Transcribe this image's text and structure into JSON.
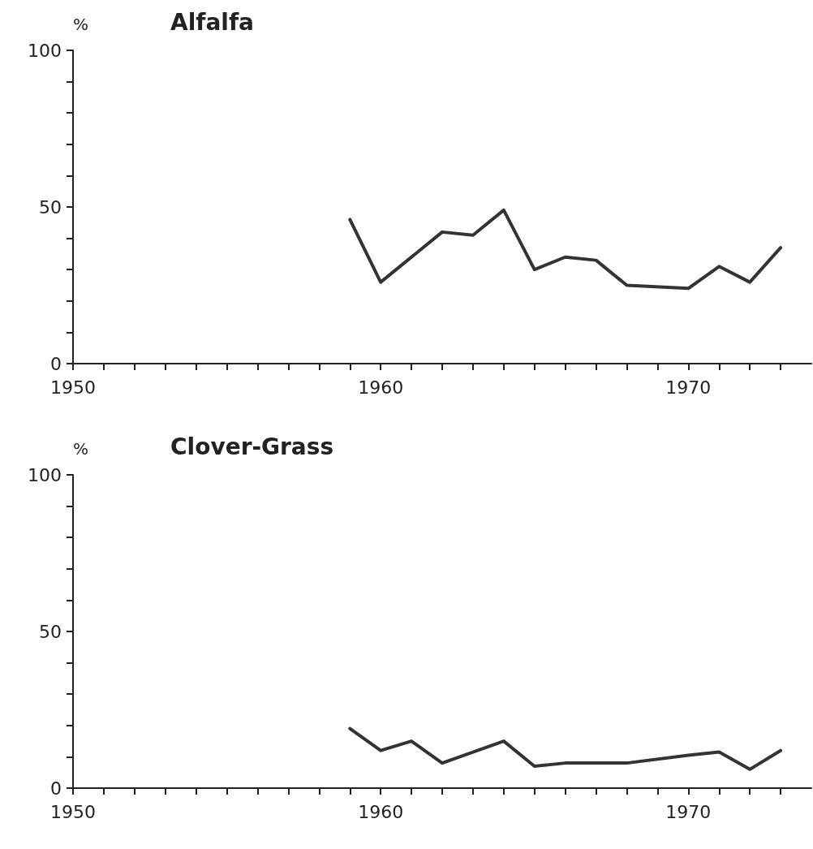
{
  "chart_data": [
    {
      "type": "line",
      "title": "Alfalfa",
      "ylabel": "%",
      "x": [
        1959,
        1960,
        1962,
        1963,
        1964,
        1965,
        1966,
        1967,
        1968,
        1970,
        1971,
        1972,
        1973
      ],
      "series": [
        {
          "color": "#333333",
          "values": [
            46,
            26,
            42,
            41,
            49,
            30,
            34,
            33,
            25,
            24,
            31,
            26,
            37
          ]
        }
      ],
      "xlim": [
        1950,
        1974
      ],
      "ylim": [
        0,
        100
      ],
      "xticks": [
        1950,
        {
          "value": 1951,
          "label": null
        },
        {
          "value": 1952,
          "label": null
        },
        {
          "value": 1953,
          "label": null
        },
        {
          "value": 1954,
          "label": null
        },
        {
          "value": 1955,
          "label": null
        },
        {
          "value": 1956,
          "label": null
        },
        {
          "value": 1957,
          "label": null
        },
        {
          "value": 1958,
          "label": null
        },
        {
          "value": 1959,
          "label": null
        },
        1960,
        {
          "value": 1961,
          "label": null
        },
        {
          "value": 1962,
          "label": null
        },
        {
          "value": 1963,
          "label": null
        },
        {
          "value": 1964,
          "label": null
        },
        {
          "value": 1965,
          "label": null
        },
        {
          "value": 1966,
          "label": null
        },
        {
          "value": 1967,
          "label": null
        },
        {
          "value": 1968,
          "label": null
        },
        {
          "value": 1969,
          "label": null
        },
        1970,
        {
          "value": 1971,
          "label": null
        },
        {
          "value": 1972,
          "label": null
        },
        {
          "value": 1973,
          "label": null
        }
      ],
      "yticks": [
        0,
        {
          "value": 10,
          "label": null
        },
        {
          "value": 20,
          "label": null
        },
        {
          "value": 30,
          "label": null
        },
        {
          "value": 40,
          "label": null
        },
        50,
        {
          "value": 60,
          "label": null
        },
        {
          "value": 70,
          "label": null
        },
        {
          "value": 80,
          "label": null
        },
        {
          "value": 90,
          "label": null
        },
        100
      ],
      "grid": false,
      "marker": "none",
      "line_style": "solid"
    },
    {
      "type": "line",
      "title": "Clover-Grass",
      "ylabel": "%",
      "x": [
        1959,
        1960,
        1961,
        1962,
        1964,
        1965,
        1966,
        1968,
        1970,
        1971,
        1972,
        1973
      ],
      "series": [
        {
          "color": "#333333",
          "values": [
            19,
            12,
            15,
            8,
            15,
            7,
            8,
            8,
            10.5,
            11.5,
            6,
            12
          ]
        }
      ],
      "xlim": [
        1950,
        1974
      ],
      "ylim": [
        0,
        100
      ],
      "xticks": [
        1950,
        {
          "value": 1951,
          "label": null
        },
        {
          "value": 1952,
          "label": null
        },
        {
          "value": 1953,
          "label": null
        },
        {
          "value": 1954,
          "label": null
        },
        {
          "value": 1955,
          "label": null
        },
        {
          "value": 1956,
          "label": null
        },
        {
          "value": 1957,
          "label": null
        },
        {
          "value": 1958,
          "label": null
        },
        {
          "value": 1959,
          "label": null
        },
        1960,
        {
          "value": 1961,
          "label": null
        },
        {
          "value": 1962,
          "label": null
        },
        {
          "value": 1963,
          "label": null
        },
        {
          "value": 1964,
          "label": null
        },
        {
          "value": 1965,
          "label": null
        },
        {
          "value": 1966,
          "label": null
        },
        {
          "value": 1967,
          "label": null
        },
        {
          "value": 1968,
          "label": null
        },
        {
          "value": 1969,
          "label": null
        },
        1970,
        {
          "value": 1971,
          "label": null
        },
        {
          "value": 1972,
          "label": null
        },
        {
          "value": 1973,
          "label": null
        }
      ],
      "yticks": [
        0,
        {
          "value": 10,
          "label": null
        },
        {
          "value": 20,
          "label": null
        },
        {
          "value": 30,
          "label": null
        },
        {
          "value": 40,
          "label": null
        },
        50,
        {
          "value": 60,
          "label": null
        },
        {
          "value": 70,
          "label": null
        },
        {
          "value": 80,
          "label": null
        },
        {
          "value": 90,
          "label": null
        },
        100
      ],
      "grid": false,
      "marker": "none",
      "line_style": "solid"
    }
  ]
}
